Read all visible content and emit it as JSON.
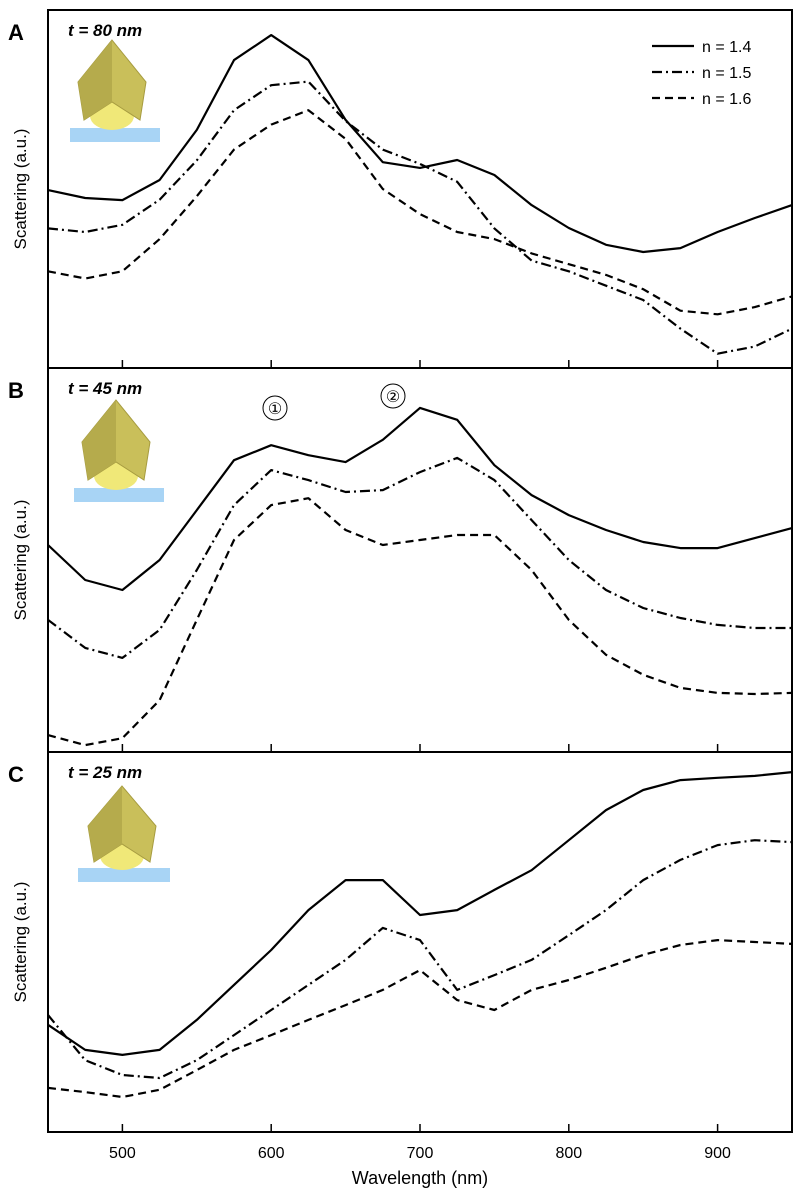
{
  "chart_data": [
    {
      "type": "line",
      "panel": "A",
      "title": "t = 80 nm",
      "ylabel": "Scattering (a.u.)",
      "x": [
        450,
        475,
        500,
        525,
        550,
        575,
        600,
        625,
        650,
        675,
        700,
        725,
        750,
        775,
        800,
        825,
        850,
        875,
        900,
        925,
        950
      ],
      "xlim": [
        450,
        950
      ],
      "ylim": [
        0,
        100
      ],
      "legend": "upper right",
      "series": [
        {
          "name": "n = 1.4",
          "color": "#000000",
          "dash": "solid",
          "values": [
            49.7,
            47.5,
            46.9,
            52.5,
            66.5,
            86.0,
            93.0,
            86.0,
            69.3,
            57.5,
            55.9,
            58.1,
            53.9,
            45.5,
            39.1,
            34.4,
            32.4,
            33.5,
            38.0,
            41.9,
            45.5
          ]
        },
        {
          "name": "n = 1.5",
          "color": "#000000",
          "dash": "dashdot",
          "values": [
            39,
            38,
            40,
            47,
            58,
            72,
            79,
            80,
            69,
            61,
            57,
            52,
            39,
            30,
            27,
            23,
            19,
            11,
            4,
            6,
            11
          ]
        },
        {
          "name": "n = 1.6",
          "color": "#000000",
          "dash": "dashed",
          "values": [
            27,
            25,
            27,
            36,
            48,
            61,
            68,
            72,
            64,
            50,
            43,
            38,
            36,
            32,
            29,
            26,
            22,
            16,
            15,
            17,
            20
          ]
        }
      ]
    },
    {
      "type": "line",
      "panel": "B",
      "title": "t = 45 nm",
      "ylabel": "Scattering (a.u.)",
      "annotations": [
        "①",
        "②"
      ],
      "x": [
        450,
        475,
        500,
        525,
        550,
        575,
        600,
        625,
        650,
        675,
        700,
        725,
        750,
        775,
        800,
        825,
        850,
        875,
        900,
        925,
        950
      ],
      "xlim": [
        450,
        950
      ],
      "ylim": [
        0,
        100
      ],
      "series": [
        {
          "color": "#000000",
          "dash": "solid",
          "values": [
            53.9,
            44.8,
            42.2,
            50.0,
            63.0,
            76.0,
            79.9,
            77.3,
            75.5,
            81.3,
            89.6,
            86.5,
            74.7,
            66.9,
            61.7,
            57.8,
            54.7,
            53.1,
            53.1,
            55.7,
            58.3
          ]
        },
        {
          "color": "#000000",
          "dash": "dashdot",
          "values": [
            34.4,
            27.1,
            24.5,
            31.8,
            47.4,
            64.3,
            73.4,
            70.8,
            67.7,
            68.2,
            72.9,
            76.6,
            70.8,
            60.4,
            50.0,
            42.2,
            37.5,
            34.9,
            33.1,
            32.3,
            32.3
          ]
        },
        {
          "color": "#000000",
          "dash": "dashed",
          "values": [
            4.4,
            1.8,
            3.6,
            13.5,
            34.4,
            55.2,
            64.3,
            66.1,
            57.8,
            53.9,
            55.2,
            56.5,
            56.5,
            47.4,
            34.4,
            25.3,
            20.1,
            16.7,
            15.4,
            15.1,
            15.4
          ]
        }
      ]
    },
    {
      "type": "line",
      "panel": "C",
      "title": "t = 25 nm",
      "ylabel": "Scattering (a.u.)",
      "xlabel": "Wavelength (nm)",
      "x": [
        450,
        475,
        500,
        525,
        550,
        575,
        600,
        625,
        650,
        675,
        700,
        725,
        750,
        775,
        800,
        825,
        850,
        875,
        900,
        925,
        950
      ],
      "xlim": [
        450,
        950
      ],
      "xticks": [
        500,
        600,
        700,
        800,
        900
      ],
      "ylim": [
        0,
        100
      ],
      "series": [
        {
          "color": "#000000",
          "dash": "solid",
          "values": [
            28.2,
            21.6,
            20.3,
            21.6,
            29.5,
            38.7,
            47.9,
            58.4,
            66.3,
            66.3,
            57.1,
            58.4,
            63.7,
            68.9,
            76.8,
            84.7,
            90.0,
            92.6,
            93.2,
            93.7,
            94.7
          ]
        },
        {
          "color": "#000000",
          "dash": "dashdot",
          "values": [
            30.8,
            18.9,
            15.0,
            14.2,
            18.9,
            25.5,
            32.1,
            38.7,
            45.3,
            53.7,
            50.5,
            37.4,
            41.3,
            45.3,
            51.8,
            58.4,
            66.3,
            71.6,
            75.5,
            76.8,
            76.3
          ]
        },
        {
          "color": "#000000",
          "dash": "dashed",
          "values": [
            11.6,
            10.5,
            9.2,
            11.1,
            16.3,
            21.6,
            25.5,
            29.5,
            33.4,
            37.4,
            42.6,
            34.7,
            32.1,
            37.4,
            40.0,
            43.2,
            46.6,
            49.2,
            50.5,
            50.0,
            49.5
          ]
        }
      ]
    }
  ]
}
